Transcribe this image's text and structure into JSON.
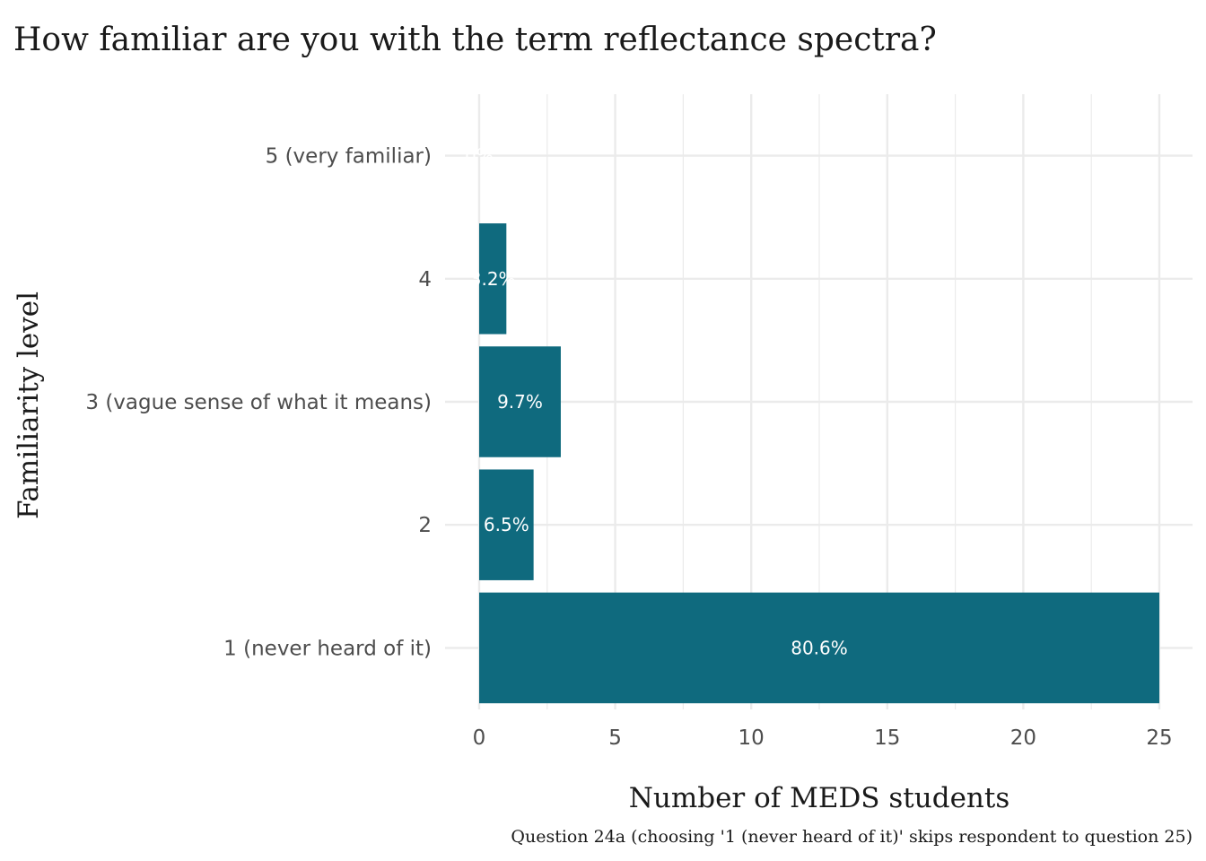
{
  "chart_data": {
    "type": "bar",
    "orientation": "horizontal",
    "title": "How familiar are you with the term reflectance spectra?",
    "xlabel": "Number of MEDS students",
    "ylabel": "Familiarity level",
    "caption": "Question 24a (choosing '1 (never heard of it)' skips respondent to question 25)",
    "categories": [
      "1 (never heard of it)",
      "2",
      "3 (vague sense of what it means)",
      "4",
      "5 (very familiar)"
    ],
    "values": [
      25,
      2,
      3,
      1,
      0
    ],
    "data_labels": [
      "80.6%",
      "6.5%",
      "9.7%",
      "3.2%",
      "0%"
    ],
    "xlim": [
      0,
      26.25
    ],
    "xticks": [
      0,
      5,
      10,
      15,
      20,
      25
    ],
    "grid": true,
    "legend": "none",
    "bar_color": "#0f6a7e",
    "grid_color": "#ebebeb"
  }
}
